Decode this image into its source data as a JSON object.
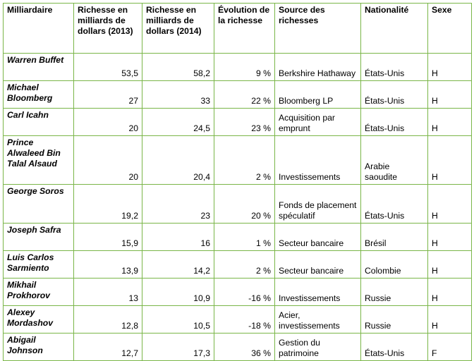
{
  "headers": [
    "Milliardaire",
    "Richesse en milliards de dollars (2013)",
    "Richesse en milliards de dollars (2014)",
    "Évolution de la richesse",
    "Source des richesses",
    "Nationalité",
    "Sexe"
  ],
  "rows": [
    {
      "name": "Warren Buffet",
      "r2013": "53,5",
      "r2014": "58,2",
      "evolution": "9 %",
      "source": "Berkshire Hathaway",
      "nationality": "États-Unis",
      "sex": "H"
    },
    {
      "name": "Michael Bloomberg",
      "r2013": "27",
      "r2014": "33",
      "evolution": "22 %",
      "source": "Bloomberg LP",
      "nationality": "États-Unis",
      "sex": "H"
    },
    {
      "name": "Carl Icahn",
      "r2013": "20",
      "r2014": "24,5",
      "evolution": "23 %",
      "source": "Acquisition par emprunt",
      "nationality": "États-Unis",
      "sex": "H"
    },
    {
      "name": "Prince Alwaleed Bin Talal Alsaud",
      "r2013": "20",
      "r2014": "20,4",
      "evolution": "2 %",
      "source": "Investissements",
      "nationality": "Arabie saoudite",
      "sex": "H"
    },
    {
      "name": "George Soros",
      "r2013": "19,2",
      "r2014": "23",
      "evolution": "20 %",
      "source": "Fonds de placement spéculatif",
      "nationality": "États-Unis",
      "sex": "H"
    },
    {
      "name": "Joseph Safra",
      "r2013": "15,9",
      "r2014": "16",
      "evolution": "1 %",
      "source": "Secteur bancaire",
      "nationality": "Brésil",
      "sex": "H"
    },
    {
      "name": "Luis Carlos Sarmiento",
      "r2013": "13,9",
      "r2014": "14,2",
      "evolution": "2 %",
      "source": "Secteur bancaire",
      "nationality": "Colombie",
      "sex": "H"
    },
    {
      "name": "Mikhail Prokhorov",
      "r2013": "13",
      "r2014": "10,9",
      "evolution": "-16 %",
      "source": "Investissements",
      "nationality": "Russie",
      "sex": "H"
    },
    {
      "name": "Alexey Mordashov",
      "r2013": "12,8",
      "r2014": "10,5",
      "evolution": "-18 %",
      "source": "Acier, investissements",
      "nationality": "Russie",
      "sex": "H"
    },
    {
      "name": "Abigail Johnson",
      "r2013": "12,7",
      "r2014": "17,3",
      "evolution": "36 %",
      "source": "Gestion du patrimoine",
      "nationality": "États-Unis",
      "sex": "F"
    }
  ]
}
